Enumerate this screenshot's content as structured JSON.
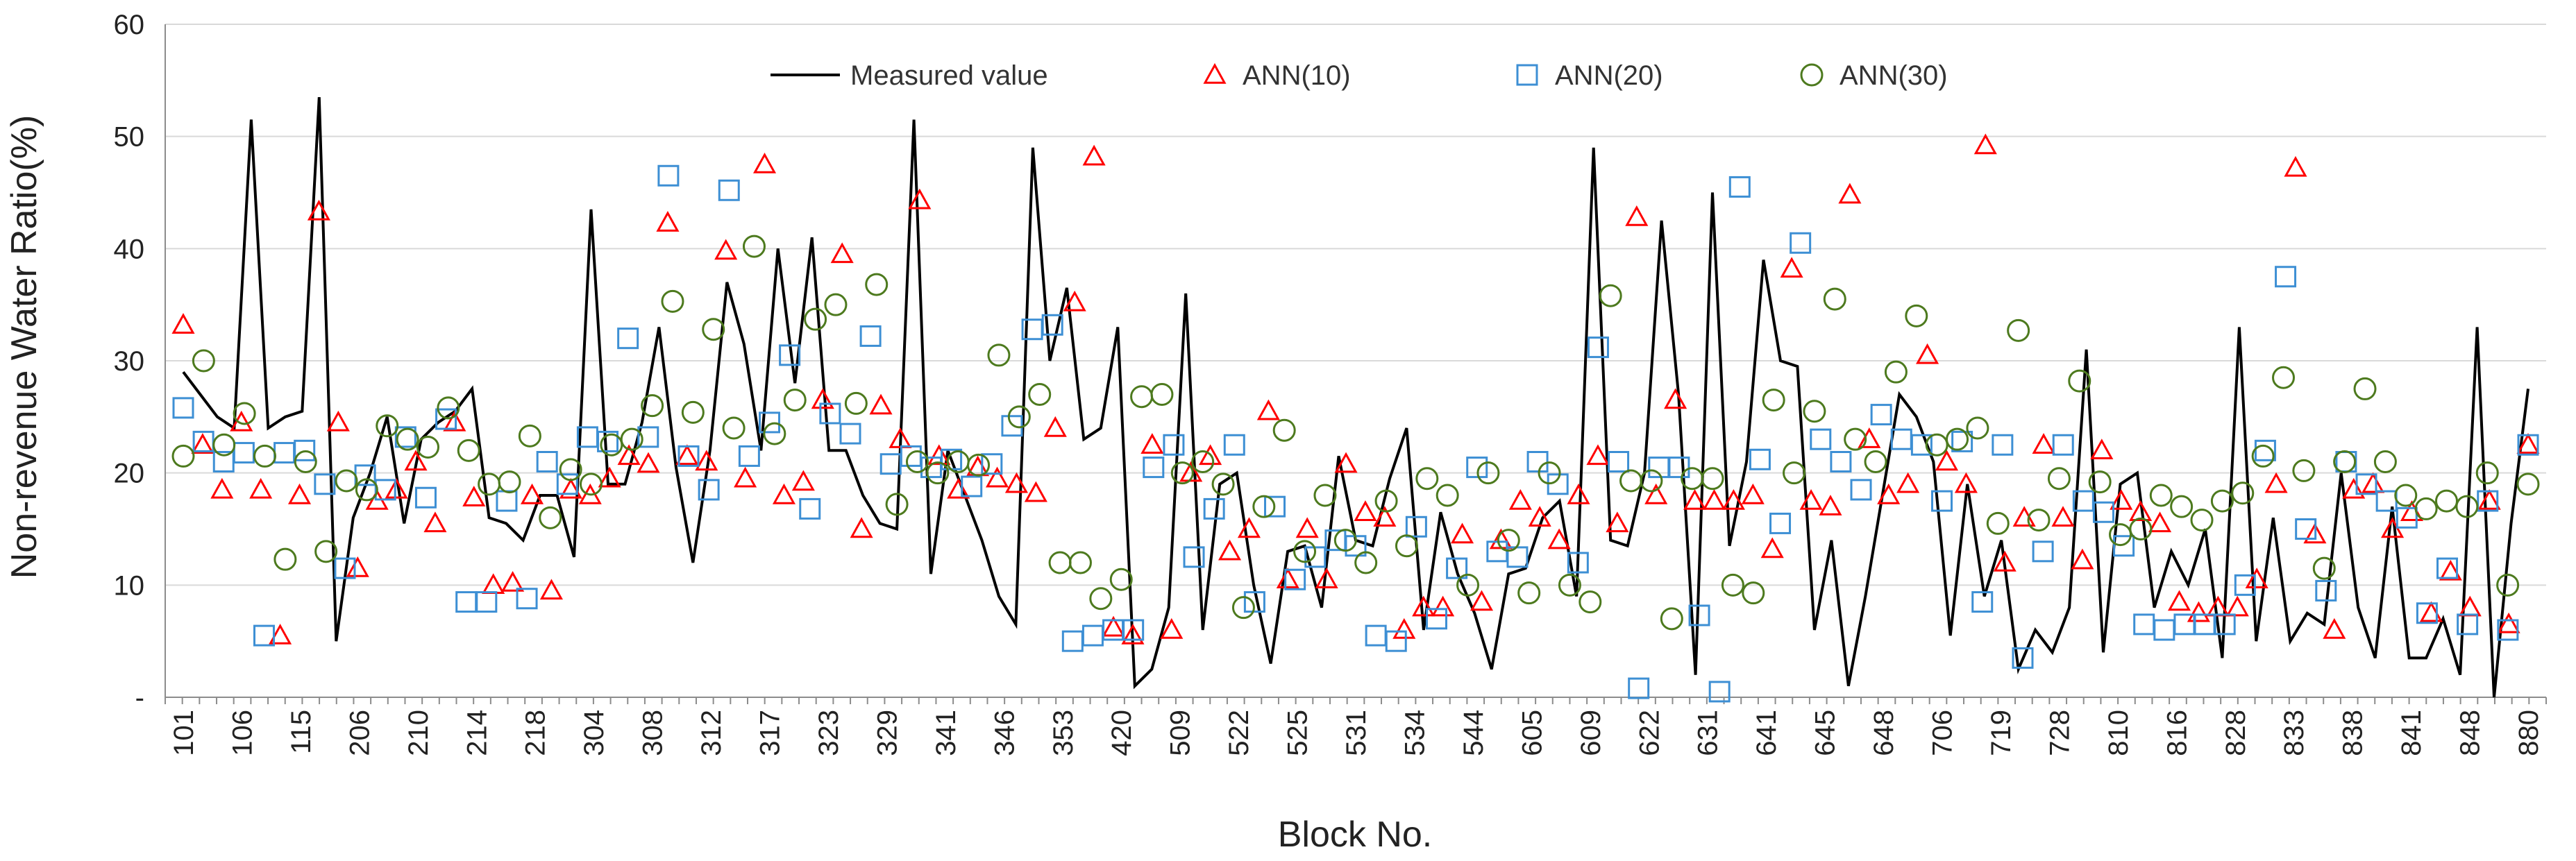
{
  "chart_data": {
    "type": "line",
    "title": "",
    "xlabel": "Block No.",
    "ylabel": "Non-revenue Water Ratio(%)",
    "ylim": [
      0,
      60
    ],
    "yticks": [
      0,
      10,
      20,
      30,
      40,
      50,
      60
    ],
    "yticklabels": [
      "-",
      "10",
      "20",
      "30",
      "40",
      "50",
      "60"
    ],
    "legend_position": "top",
    "xtick_labels": [
      "101",
      "106",
      "115",
      "206",
      "210",
      "214",
      "218",
      "304",
      "308",
      "312",
      "317",
      "323",
      "329",
      "341",
      "346",
      "353",
      "420",
      "509",
      "522",
      "525",
      "531",
      "534",
      "544",
      "605",
      "609",
      "622",
      "631",
      "641",
      "645",
      "648",
      "706",
      "719",
      "728",
      "810",
      "816",
      "828",
      "833",
      "838",
      "841",
      "848",
      "880"
    ],
    "series": [
      {
        "name": "Measured value",
        "style": "line",
        "color": "#000000",
        "values": [
          29,
          27,
          25,
          24,
          51.5,
          24,
          25,
          25.5,
          53.5,
          5,
          16,
          20,
          25,
          15.5,
          23,
          24.5,
          25.5,
          27.5,
          16,
          15.5,
          14,
          18,
          18,
          12.5,
          43.5,
          19,
          19,
          24.5,
          33,
          20.5,
          12,
          22,
          37,
          31.5,
          22,
          40,
          28,
          41,
          22,
          22,
          18,
          15.5,
          15,
          51.5,
          11,
          22,
          18,
          14,
          9,
          6.5,
          49,
          30,
          36.5,
          23,
          24,
          33,
          1,
          2.5,
          8,
          36,
          6,
          19,
          20,
          10,
          3,
          13,
          13.5,
          8,
          21.5,
          14,
          13.5,
          19.5,
          24,
          6,
          16.5,
          11,
          7.5,
          2.5,
          11,
          11.5,
          16,
          17.5,
          9,
          49,
          14,
          13.5,
          20,
          42.5,
          27,
          2,
          45,
          13.5,
          21,
          39,
          30,
          29.5,
          6,
          14,
          1,
          9,
          18,
          27,
          25,
          21,
          5.5,
          19,
          9,
          14,
          2.5,
          6,
          4,
          8,
          31,
          4,
          19,
          20,
          8,
          13,
          10,
          15,
          3.5,
          33,
          5,
          16,
          5,
          7.5,
          6.5,
          20,
          8,
          3.5,
          17,
          3.5,
          3.5,
          7,
          2,
          33,
          0,
          15.5,
          27.5
        ]
      },
      {
        "name": "ANN(10)",
        "style": "triangle",
        "color": "#ff0000",
        "values": [
          33.2,
          22.5,
          18.5,
          24.5,
          18.5,
          5.5,
          18,
          43.3,
          24.5,
          11.5,
          17.5,
          18.5,
          21,
          15.5,
          24.5,
          17.8,
          10,
          10.2,
          18,
          9.5,
          18.5,
          18,
          19.5,
          21.5,
          20.8,
          42.3,
          21.5,
          21,
          39.8,
          19.5,
          47.5,
          18,
          19.2,
          26.5,
          39.5,
          15,
          26,
          23,
          44.3,
          21.5,
          18.5,
          20.5,
          19.5,
          19,
          18.2,
          24,
          35.2,
          48.2,
          6.2,
          5.5,
          22.5,
          6,
          20,
          21.5,
          13,
          15,
          25.5,
          10.5,
          15,
          10.5,
          20.8,
          16.5,
          16,
          6,
          8,
          8,
          14.5,
          8.5,
          14,
          17.5,
          16,
          14,
          18,
          21.5,
          15.5,
          42.8,
          18,
          26.5,
          17.5,
          17.5,
          17.5,
          18,
          13.2,
          38.2,
          17.5,
          17,
          44.8,
          23,
          18,
          19,
          30.5,
          21,
          19,
          49.2,
          12,
          16,
          22.5,
          16,
          12.2,
          22,
          17.5,
          16.5,
          15.5,
          8.5,
          7.5,
          8,
          8,
          10.5,
          19,
          47.2,
          14.5,
          6,
          18.5,
          19,
          15,
          16.5,
          7.5,
          11.2,
          8,
          17.5,
          6.5,
          22.5
        ]
      },
      {
        "name": "ANN(20)",
        "style": "square",
        "color": "#3d8fd4",
        "values": [
          25.8,
          22.8,
          21,
          21.8,
          5.5,
          21.8,
          22,
          19,
          11.5,
          19.8,
          18.5,
          23.2,
          17.8,
          24.8,
          8.5,
          8.5,
          17.5,
          8.8,
          21,
          19,
          23.2,
          22.8,
          32,
          23.2,
          46.5,
          21.5,
          18.5,
          45.2,
          21.5,
          24.5,
          30.5,
          16.8,
          25.3,
          23.5,
          32.2,
          20.8,
          21.5,
          20.5,
          21.2,
          18.8,
          20.8,
          24.2,
          32.8,
          33.2,
          5,
          5.5,
          6,
          6,
          20.5,
          22.5,
          12.5,
          16.8,
          22.5,
          8.5,
          17,
          10.5,
          12.5,
          14,
          13.5,
          5.5,
          5,
          15.2,
          7,
          11.5,
          20.5,
          13,
          12.5,
          21,
          19,
          12,
          31.2,
          21,
          0.8,
          20.5,
          20.5,
          7.3,
          0.5,
          45.5,
          21.2,
          15.5,
          40.5,
          23,
          21,
          18.5,
          25.2,
          23,
          22.5,
          17.5,
          22.8,
          8.5,
          22.5,
          3.5,
          13,
          22.5,
          17.5,
          16.5,
          13.5,
          6.5,
          6,
          6.5,
          6.5,
          6.5,
          10,
          22,
          37.5,
          15,
          9.5,
          21,
          19,
          17.5,
          16,
          7.5,
          11.5,
          6.5,
          17.5,
          6,
          22.5
        ]
      },
      {
        "name": "ANN(30)",
        "style": "circle",
        "color": "#4d7a1e",
        "values": [
          21.5,
          30,
          22.5,
          25.3,
          21.5,
          12.3,
          21,
          13,
          19.3,
          18.5,
          24.2,
          23,
          22.3,
          25.8,
          22,
          19,
          19.2,
          23.3,
          16,
          20.3,
          19,
          22.5,
          23,
          26,
          35.3,
          25.4,
          32.8,
          24,
          40.2,
          23.5,
          26.5,
          33.7,
          35,
          26.2,
          36.8,
          17.2,
          21,
          20,
          21,
          20.7,
          30.5,
          25,
          27,
          12,
          12,
          8.8,
          10.5,
          26.8,
          27,
          20,
          21,
          19,
          8,
          17,
          23.8,
          13,
          18,
          14,
          12,
          17.5,
          13.5,
          19.5,
          18,
          10,
          20,
          14,
          9.3,
          20,
          10,
          8.5,
          35.8,
          19.3,
          19.3,
          7,
          19.5,
          19.5,
          10,
          9.3,
          26.5,
          20,
          25.5,
          35.5,
          23,
          21,
          29,
          34,
          22.5,
          23,
          24,
          15.5,
          32.7,
          15.8,
          19.5,
          28.2,
          19.2,
          14.5,
          15,
          18,
          17,
          15.8,
          17.5,
          18.2,
          21.5,
          28.5,
          20.2,
          11.5,
          21,
          27.5,
          21,
          18,
          16.8,
          17.5,
          17,
          20,
          10,
          19
        ]
      }
    ]
  }
}
